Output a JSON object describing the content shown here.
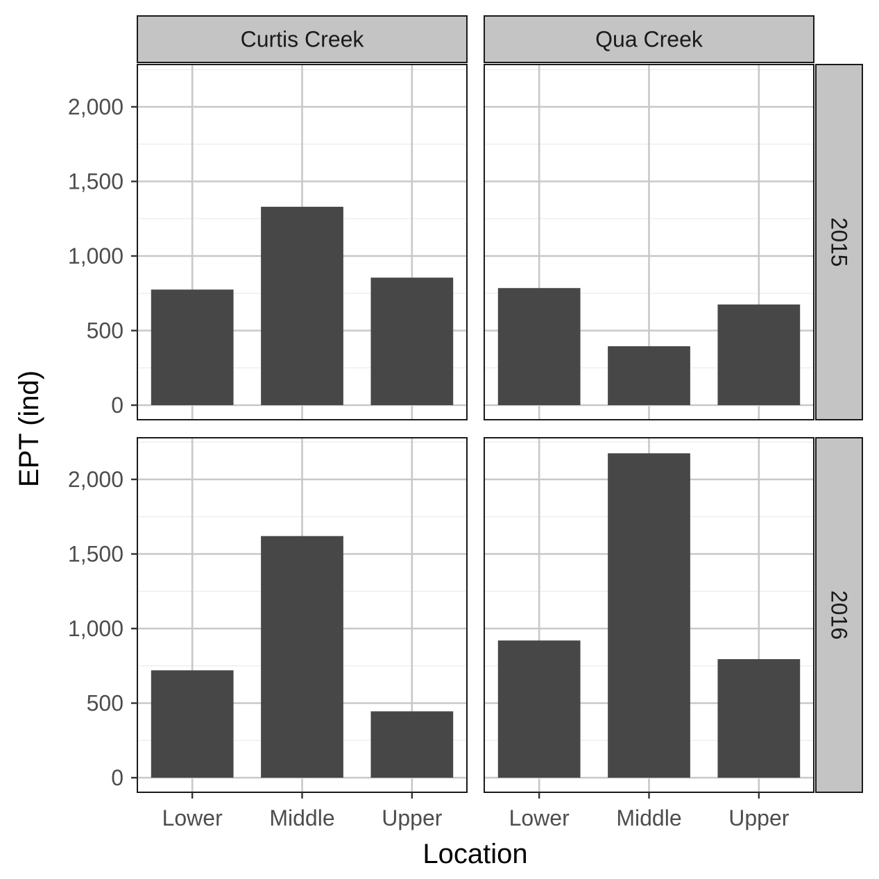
{
  "chart_data": {
    "type": "bar",
    "facet_columns": [
      "Curtis Creek",
      "Qua Creek"
    ],
    "facet_rows": [
      "2015",
      "2016"
    ],
    "categories": [
      "Lower",
      "Middle",
      "Upper"
    ],
    "xlabel": "Location",
    "ylabel": "EPT (ind)",
    "ylim": [
      0,
      2290
    ],
    "yticks": [
      0,
      500,
      1000,
      1500,
      2000
    ],
    "ytick_labels": [
      "0",
      "500",
      "1,000",
      "1,500",
      "2,000"
    ],
    "grid": true,
    "bar_color": "#474747",
    "panels": [
      {
        "column": "Curtis Creek",
        "row": "2015",
        "values": [
          775,
          1330,
          855
        ]
      },
      {
        "column": "Qua Creek",
        "row": "2015",
        "values": [
          785,
          395,
          675
        ]
      },
      {
        "column": "Curtis Creek",
        "row": "2016",
        "values": [
          720,
          1620,
          445
        ]
      },
      {
        "column": "Qua Creek",
        "row": "2016",
        "values": [
          920,
          2175,
          795
        ]
      }
    ]
  }
}
